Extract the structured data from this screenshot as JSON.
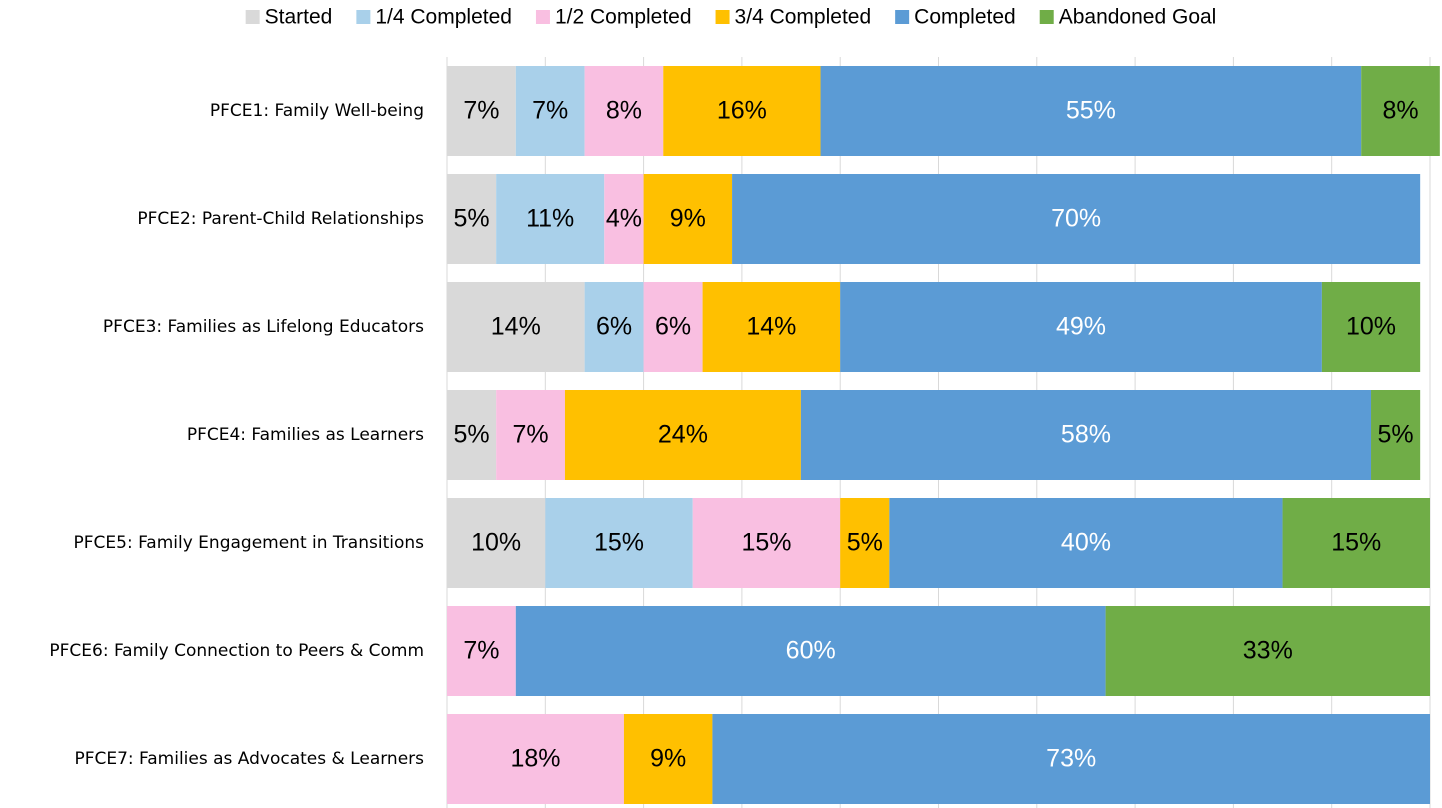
{
  "chart_data": {
    "type": "bar",
    "orientation": "horizontal",
    "stacked": true,
    "categories": [
      "PFCE1: Family Well-being",
      "PFCE2: Parent-Child Relationships",
      "PFCE3: Families as Lifelong Educators",
      "PFCE4: Families as Learners",
      "PFCE5: Family Engagement in Transitions",
      "PFCE6: Family Connection to Peers & Comm",
      "PFCE7: Families as Advocates & Learners"
    ],
    "series": [
      {
        "name": "Started",
        "color": "#d9d9d9",
        "label_color": "#000000",
        "values": [
          7,
          5,
          14,
          5,
          10,
          null,
          null
        ],
        "value_labels": [
          "7%",
          "5%",
          "14%",
          "5%",
          "10%",
          null,
          null
        ]
      },
      {
        "name": "1/4 Completed",
        "color": "#a9d0ea",
        "label_color": "#000000",
        "values": [
          7,
          11,
          6,
          null,
          15,
          null,
          null
        ],
        "value_labels": [
          "7%",
          "11%",
          "6%",
          null,
          "15%",
          null,
          null
        ]
      },
      {
        "name": "1/2 Completed",
        "color": "#f9bfe1",
        "label_color": "#000000",
        "values": [
          8,
          4,
          6,
          7,
          15,
          7,
          18
        ],
        "value_labels": [
          "8%",
          "4%",
          "6%",
          "7%",
          "15%",
          "7%",
          "18%"
        ]
      },
      {
        "name": "3/4 Completed",
        "color": "#ffc000",
        "label_color": "#000000",
        "values": [
          16,
          9,
          14,
          24,
          5,
          null,
          9
        ],
        "value_labels": [
          "16%",
          "9%",
          "14%",
          "24%",
          "5%",
          null,
          "9%"
        ]
      },
      {
        "name": "Completed",
        "color": "#5b9bd5",
        "label_color": "#ffffff",
        "values": [
          55,
          70,
          49,
          58,
          40,
          60,
          73
        ],
        "value_labels": [
          "55%",
          "70%",
          "49%",
          "58%",
          "40%",
          "60%",
          "73%"
        ]
      },
      {
        "name": "Abandoned Goal",
        "color": "#70ad47",
        "label_color": "#000000",
        "values": [
          8,
          null,
          10,
          5,
          15,
          33,
          null
        ],
        "value_labels": [
          "8%",
          null,
          "10%",
          "5%",
          "15%",
          "33%",
          null
        ]
      }
    ],
    "xlim": [
      0,
      100
    ],
    "xticks": [
      0,
      10,
      20,
      30,
      40,
      50,
      60,
      70,
      80,
      90,
      100
    ],
    "grid": true,
    "legend": "top"
  }
}
